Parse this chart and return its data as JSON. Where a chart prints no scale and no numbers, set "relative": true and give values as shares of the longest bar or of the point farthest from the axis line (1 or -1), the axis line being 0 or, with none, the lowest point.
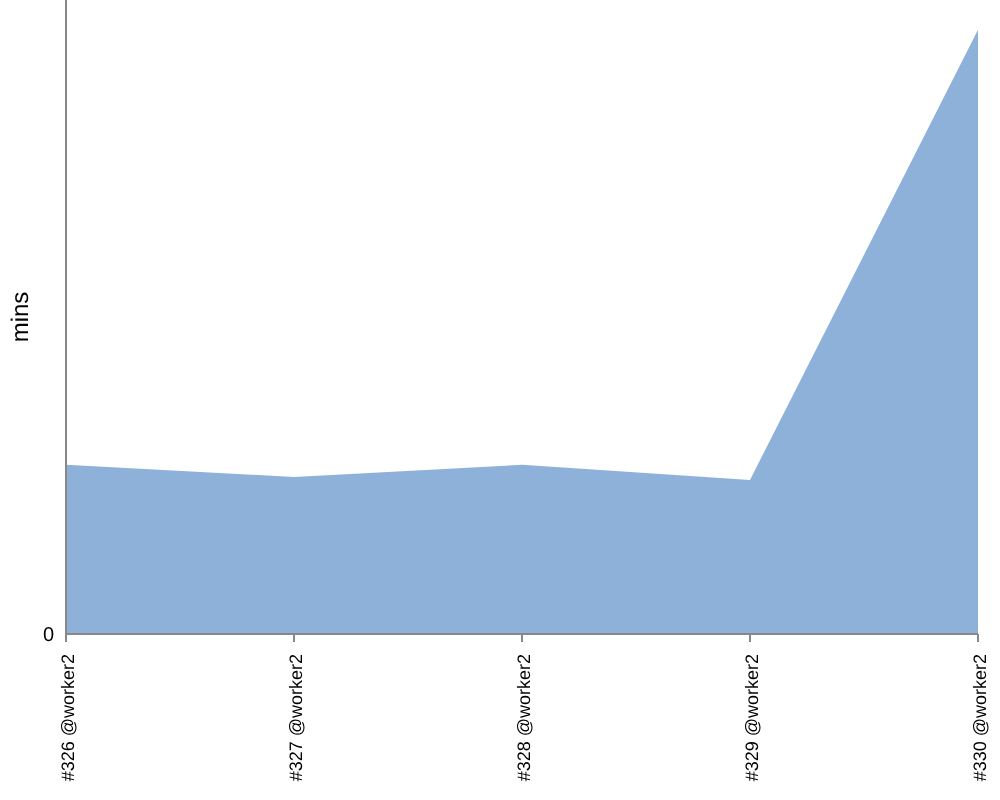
{
  "chart_data": {
    "type": "area",
    "ylabel": "mins",
    "relative": true,
    "annotations": [
      "0"
    ],
    "categories": [
      "#326 @worker2",
      "#327 @worker2",
      "#328 @worker2",
      "#329 @worker2",
      "#330 @worker2"
    ],
    "series": [
      {
        "color": "#8eb1da",
        "values": [
          0.28,
          0.26,
          0.28,
          0.255,
          1
        ]
      }
    ]
  }
}
